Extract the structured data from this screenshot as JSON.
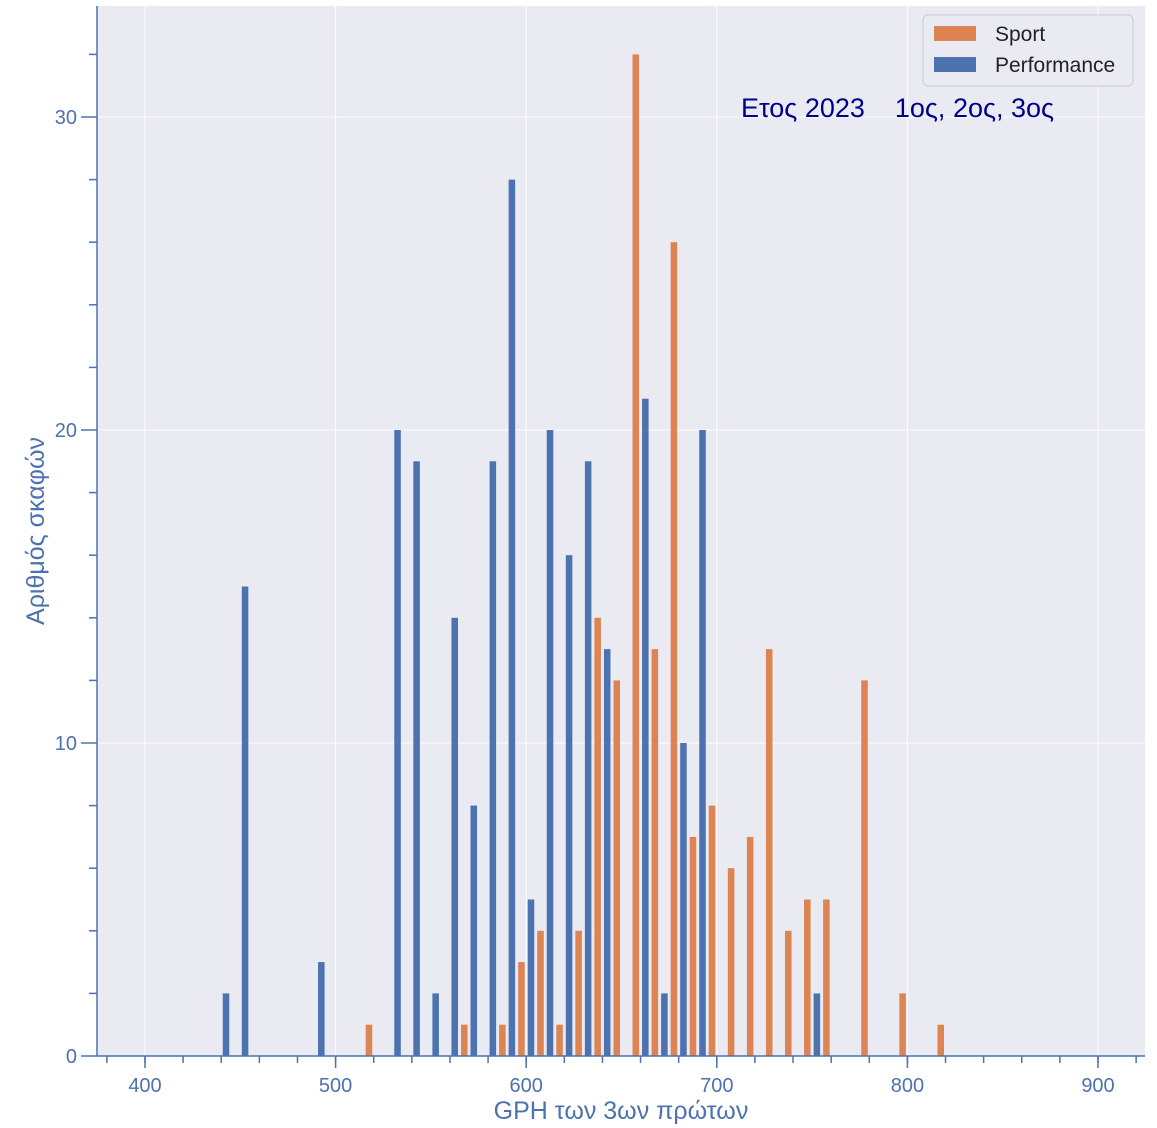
{
  "chart_data": {
    "type": "bar",
    "title": "",
    "xlabel": "GPH των 3ων πρώτων",
    "ylabel": "Αριθμός σκαφών",
    "xlim": [
      380,
      925
    ],
    "ylim": [
      0,
      32.5
    ],
    "x_ticks": [
      400,
      500,
      600,
      700,
      800,
      900
    ],
    "x_tick_labels": [
      "400",
      "500",
      "600",
      "700",
      "800",
      "900"
    ],
    "y_ticks": [
      0,
      10,
      20,
      30
    ],
    "y_tick_labels": [
      "0",
      "10",
      "20",
      "30"
    ],
    "grid": true,
    "legend_position": "top-right",
    "bin_width": 10,
    "bin_starts": [
      440,
      450,
      460,
      470,
      480,
      490,
      500,
      510,
      520,
      530,
      540,
      550,
      560,
      570,
      580,
      590,
      600,
      610,
      620,
      630,
      640,
      650,
      660,
      670,
      680,
      690,
      700,
      710,
      720,
      730,
      740,
      750,
      760,
      770,
      780,
      790,
      800,
      810
    ],
    "series": [
      {
        "name": "Sport",
        "color": "#dd8452",
        "values": [
          0,
          0,
          0,
          0,
          0,
          0,
          0,
          1,
          0,
          0,
          0,
          0,
          1,
          0,
          1,
          3,
          4,
          1,
          4,
          14,
          12,
          32,
          13,
          26,
          7,
          8,
          6,
          7,
          13,
          4,
          5,
          5,
          0,
          12,
          0,
          2,
          0,
          1
        ]
      },
      {
        "name": "Performance",
        "color": "#4c72b0",
        "values": [
          2,
          15,
          0,
          0,
          0,
          3,
          0,
          0,
          0,
          20,
          19,
          2,
          14,
          8,
          19,
          28,
          5,
          20,
          16,
          19,
          13,
          0,
          21,
          2,
          10,
          20,
          0,
          0,
          0,
          0,
          0,
          2,
          0,
          0,
          0,
          0,
          0,
          0
        ]
      }
    ],
    "annotation": "Ετος 2023    1ος, 2ος, 3ος"
  }
}
